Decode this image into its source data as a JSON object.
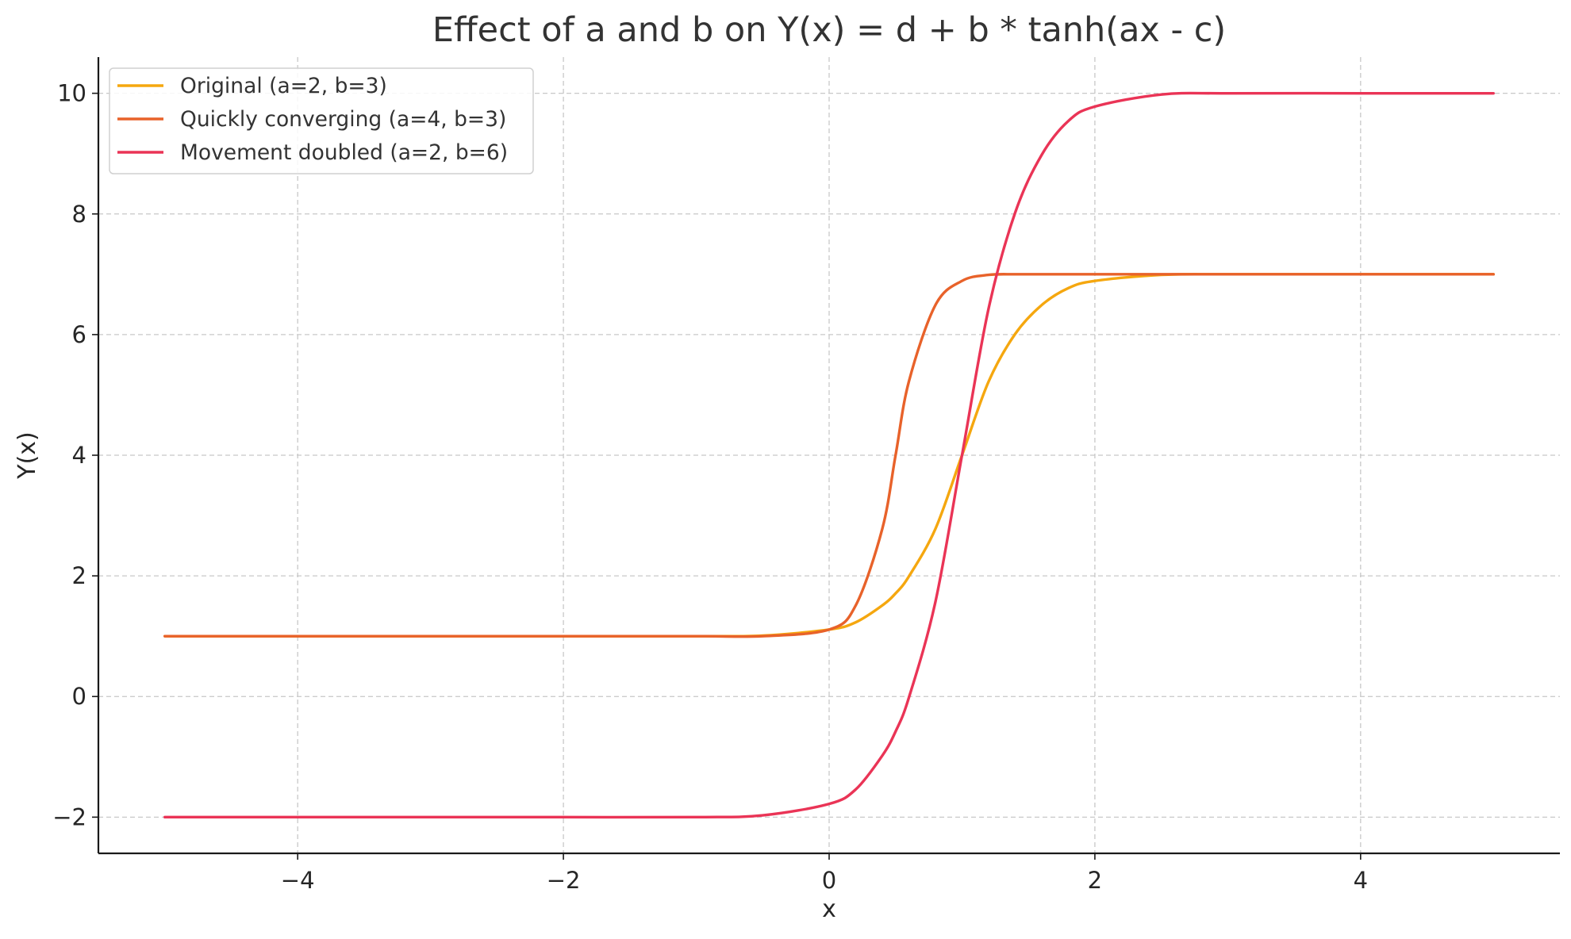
{
  "chart_data": {
    "type": "line",
    "title": "Effect of a and b on Y(x) = d + b * tanh(ax - c)",
    "xlabel": "x",
    "ylabel": "Y(x)",
    "xlim": [
      -5.5,
      5.5
    ],
    "ylim": [
      -2.6,
      10.6
    ],
    "xticks": [
      -4,
      -2,
      0,
      2,
      4
    ],
    "xtick_labels": [
      "−4",
      "−2",
      "0",
      "2",
      "4"
    ],
    "yticks": [
      -2,
      0,
      2,
      4,
      6,
      8,
      10
    ],
    "ytick_labels": [
      "−2",
      "0",
      "2",
      "4",
      "6",
      "8",
      "10"
    ],
    "grid": true,
    "legend_position": "top-left",
    "x": [
      -5,
      -4,
      -3,
      -2,
      -1,
      -0.5,
      0,
      0.2,
      0.4,
      0.5,
      0.6,
      0.8,
      1,
      1.2,
      1.4,
      1.6,
      1.8,
      2,
      2.5,
      3,
      4,
      5
    ],
    "series": [
      {
        "name": "Original (a=2, b=3)",
        "color": "#f5a70f",
        "values": [
          1,
          1,
          1,
          1,
          1.0,
          1.01,
          1.11,
          1.23,
          1.51,
          1.71,
          1.99,
          2.78,
          4.0,
          5.22,
          6.01,
          6.49,
          6.77,
          6.89,
          6.99,
          7.0,
          7.0,
          7.0
        ]
      },
      {
        "name": "Quickly converging (a=4, b=3)",
        "color": "#e8622a",
        "values": [
          1,
          1,
          1,
          1,
          1,
          1.0,
          1.11,
          1.51,
          2.78,
          4.0,
          5.22,
          6.49,
          6.89,
          6.99,
          7.0,
          7.0,
          7.0,
          7.0,
          7.0,
          7.0,
          7.0,
          7.0
        ]
      },
      {
        "name": "Movement doubled (a=2, b=6)",
        "color": "#ea3456",
        "values": [
          -2,
          -2,
          -2,
          -2,
          -2.0,
          -1.97,
          -1.78,
          -1.54,
          -0.98,
          -0.58,
          -0.02,
          1.57,
          4.0,
          6.43,
          8.02,
          8.98,
          9.54,
          9.78,
          9.98,
          10.0,
          10.0,
          10.0
        ]
      }
    ]
  }
}
